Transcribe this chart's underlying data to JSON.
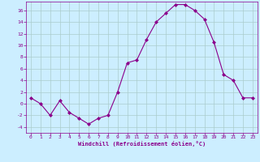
{
  "x": [
    0,
    1,
    2,
    3,
    4,
    5,
    6,
    7,
    8,
    9,
    10,
    11,
    12,
    13,
    14,
    15,
    16,
    17,
    18,
    19,
    20,
    21,
    22,
    23
  ],
  "y": [
    1,
    0,
    -2,
    0.5,
    -1.5,
    -2.5,
    -3.5,
    -2.5,
    -2,
    2,
    7,
    7.5,
    11,
    14,
    15.5,
    17,
    17,
    16,
    14.5,
    10.5,
    5,
    4,
    1,
    1
  ],
  "line_color": "#8B008B",
  "marker": "D",
  "marker_size": 2.0,
  "bg_color": "#cceeff",
  "grid_color": "#aacccc",
  "tick_color": "#8B008B",
  "xlabel": "Windchill (Refroidissement éolien,°C)",
  "xlabel_color": "#8B008B",
  "ylim": [
    -5,
    17.5
  ],
  "yticks": [
    -4,
    -2,
    0,
    2,
    4,
    6,
    8,
    10,
    12,
    14,
    16
  ],
  "xlim": [
    -0.5,
    23.5
  ],
  "xticks": [
    0,
    1,
    2,
    3,
    4,
    5,
    6,
    7,
    8,
    9,
    10,
    11,
    12,
    13,
    14,
    15,
    16,
    17,
    18,
    19,
    20,
    21,
    22,
    23
  ]
}
